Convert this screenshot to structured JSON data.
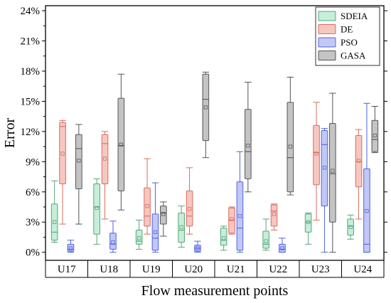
{
  "chart_data": {
    "type": "box",
    "title": "",
    "xlabel": "Flow measurement points",
    "ylabel": "Error",
    "categories": [
      "U17",
      "U18",
      "U19",
      "U20",
      "U21",
      "U22",
      "U23",
      "U24"
    ],
    "y_ticks": [
      "0%",
      "3%",
      "6%",
      "9%",
      "12%",
      "15%",
      "18%",
      "21%",
      "24%"
    ],
    "ylim": [
      -0.8,
      24.5
    ],
    "y_unit": "%",
    "legend_position": "top-right",
    "series": [
      {
        "name": "SDEIA",
        "fill": "#c6eed8",
        "stroke": "#5aa57a",
        "boxes": [
          {
            "min": 1.0,
            "q1": 1.2,
            "median": 2.0,
            "q3": 4.8,
            "max": 7.1,
            "mean": 3.0
          },
          {
            "min": 0.8,
            "q1": 1.8,
            "median": 4.5,
            "q3": 6.8,
            "max": 7.3,
            "mean": 4.4
          },
          {
            "min": 0.3,
            "q1": 0.8,
            "median": 1.1,
            "q3": 2.2,
            "max": 3.2,
            "mean": 1.4
          },
          {
            "min": 0.5,
            "q1": 1.0,
            "median": 2.2,
            "q3": 3.9,
            "max": 4.6,
            "mean": 2.5
          },
          {
            "min": 0.2,
            "q1": 0.7,
            "median": 1.2,
            "q3": 2.4,
            "max": 2.6,
            "mean": 1.4
          },
          {
            "min": 0.2,
            "q1": 0.4,
            "median": 0.8,
            "q3": 2.1,
            "max": 3.3,
            "mean": 1.1
          },
          {
            "min": 0.8,
            "q1": 2.0,
            "median": 3.0,
            "q3": 3.8,
            "max": 3.9,
            "mean": 3.0
          },
          {
            "min": 1.3,
            "q1": 1.7,
            "median": 2.6,
            "q3": 3.3,
            "max": 3.7,
            "mean": 2.5
          }
        ]
      },
      {
        "name": "DE",
        "fill": "#f6c7c0",
        "stroke": "#d96d5f",
        "boxes": [
          {
            "min": 2.8,
            "q1": 6.8,
            "median": 12.5,
            "q3": 12.9,
            "max": 13.1,
            "mean": 9.8
          },
          {
            "min": 3.3,
            "q1": 6.8,
            "median": 10.8,
            "q3": 11.7,
            "max": 12.0,
            "mean": 9.3
          },
          {
            "min": 1.8,
            "q1": 2.6,
            "median": 3.6,
            "q3": 6.4,
            "max": 9.3,
            "mean": 4.6
          },
          {
            "min": 1.8,
            "q1": 2.6,
            "median": 3.6,
            "q3": 6.1,
            "max": 8.4,
            "mean": 4.3
          },
          {
            "min": 1.8,
            "q1": 1.9,
            "median": 3.2,
            "q3": 4.4,
            "max": 4.5,
            "mean": 3.3
          },
          {
            "min": 2.2,
            "q1": 2.6,
            "median": 4.1,
            "q3": 4.7,
            "max": 4.8,
            "mean": 3.8
          },
          {
            "min": 3.2,
            "q1": 6.7,
            "median": 9.9,
            "q3": 12.6,
            "max": 14.9,
            "mean": 9.8
          },
          {
            "min": 3.3,
            "q1": 6.5,
            "median": 9.0,
            "q3": 11.6,
            "max": 12.2,
            "mean": 9.1
          }
        ]
      },
      {
        "name": "PSO",
        "fill": "#c2c8f6",
        "stroke": "#4f63df",
        "boxes": [
          {
            "min": 0.0,
            "q1": 0.1,
            "median": 0.3,
            "q3": 0.8,
            "max": 1.2,
            "mean": 0.4
          },
          {
            "min": 0.0,
            "q1": 0.3,
            "median": 0.8,
            "q3": 1.9,
            "max": 3.1,
            "mean": 1.0
          },
          {
            "min": 0.0,
            "q1": 0.2,
            "median": 1.4,
            "q3": 3.8,
            "max": 6.9,
            "mean": 2.0
          },
          {
            "min": 0.0,
            "q1": 0.1,
            "median": 0.4,
            "q3": 0.7,
            "max": 1.1,
            "mean": 0.4
          },
          {
            "min": 0.0,
            "q1": 0.2,
            "median": 2.4,
            "q3": 7.0,
            "max": 10.0,
            "mean": 3.6
          },
          {
            "min": 0.0,
            "q1": 0.0,
            "median": 0.3,
            "q3": 0.8,
            "max": 1.4,
            "mean": 0.4
          },
          {
            "min": 0.0,
            "q1": 4.6,
            "median": 10.7,
            "q3": 12.1,
            "max": 12.3,
            "mean": 8.4
          },
          {
            "min": 0.0,
            "q1": 0.0,
            "median": 0.8,
            "q3": 8.3,
            "max": 14.8,
            "mean": 4.1
          }
        ]
      },
      {
        "name": "GASA",
        "fill": "#c4c4c4",
        "stroke": "#555555",
        "boxes": [
          {
            "min": 2.8,
            "q1": 6.3,
            "median": 10.3,
            "q3": 11.7,
            "max": 12.7,
            "mean": 9.1
          },
          {
            "min": 4.2,
            "q1": 6.1,
            "median": 10.6,
            "q3": 15.3,
            "max": 17.7,
            "mean": 10.7
          },
          {
            "min": 1.6,
            "q1": 2.8,
            "median": 3.9,
            "q3": 4.6,
            "max": 5.0,
            "mean": 3.8
          },
          {
            "min": 9.4,
            "q1": 11.1,
            "median": 15.2,
            "q3": 17.7,
            "max": 17.9,
            "mean": 14.4
          },
          {
            "min": 6.0,
            "q1": 7.3,
            "median": 10.0,
            "q3": 14.2,
            "max": 16.9,
            "mean": 10.6
          },
          {
            "min": 5.7,
            "q1": 6.0,
            "median": 9.4,
            "q3": 14.9,
            "max": 17.4,
            "mean": 10.5
          },
          {
            "min": 0.0,
            "q1": 3.0,
            "median": 7.8,
            "q3": 12.8,
            "max": 15.8,
            "mean": 8.1
          },
          {
            "min": 9.9,
            "q1": 10.0,
            "median": 11.2,
            "q3": 13.1,
            "max": 14.5,
            "mean": 11.6
          }
        ]
      }
    ]
  }
}
